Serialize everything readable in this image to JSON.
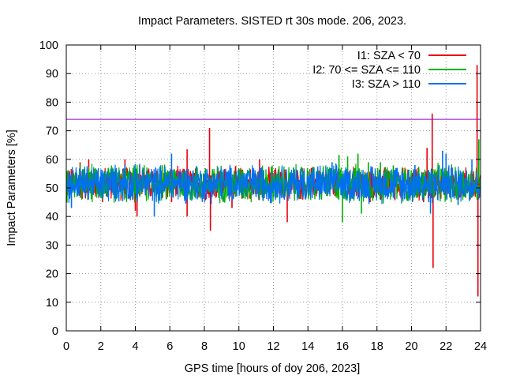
{
  "chart_data": {
    "type": "line",
    "title": "Impact Parameters. SISTED rt 30s mode. 206, 2023.",
    "xlabel": "GPS time [hours of doy 206, 2023]",
    "ylabel": "Impact Parameters [%]",
    "xlim": [
      0,
      24
    ],
    "ylim": [
      0,
      100
    ],
    "xticks": [
      0,
      2,
      4,
      6,
      8,
      10,
      12,
      14,
      16,
      18,
      20,
      22,
      24
    ],
    "yticks": [
      0,
      10,
      20,
      30,
      40,
      50,
      60,
      70,
      80,
      90,
      100
    ],
    "grid": true,
    "legend_position": "top-right",
    "reference_line": {
      "value": 74,
      "color": "#9400d3"
    },
    "series": [
      {
        "name": "I1: SZA < 70",
        "color": "#e8000b",
        "mean": 51.5,
        "band": [
          45,
          58
        ],
        "spikes": [
          [
            0.8,
            59
          ],
          [
            1.3,
            60
          ],
          [
            2.1,
            45
          ],
          [
            3.4,
            60
          ],
          [
            4.0,
            42
          ],
          [
            4.1,
            40
          ],
          [
            6.1,
            45
          ],
          [
            7.0,
            63.5
          ],
          [
            7.0,
            40
          ],
          [
            8.3,
            71
          ],
          [
            8.35,
            35
          ],
          [
            9.6,
            43
          ],
          [
            11.2,
            60
          ],
          [
            12.8,
            38
          ],
          [
            14.2,
            57
          ],
          [
            17.6,
            45
          ],
          [
            20.7,
            45
          ],
          [
            20.9,
            64
          ],
          [
            21.2,
            76
          ],
          [
            21.25,
            22
          ],
          [
            23.8,
            93
          ],
          [
            23.85,
            12
          ]
        ]
      },
      {
        "name": "I2: 70 <= SZA <= 110",
        "color": "#00b000",
        "mean": 51.5,
        "band": [
          44,
          59
        ],
        "spikes": [
          [
            15.8,
            61.5
          ],
          [
            16.0,
            38
          ],
          [
            16.3,
            61
          ],
          [
            16.9,
            62
          ],
          [
            17.1,
            41
          ],
          [
            17.5,
            59
          ],
          [
            18.2,
            59
          ],
          [
            23.9,
            67
          ],
          [
            21.6,
            58
          ]
        ]
      },
      {
        "name": "I3: SZA > 110",
        "color": "#0070f0",
        "mean": 51.5,
        "band": [
          44,
          59
        ],
        "spikes": [
          [
            0.3,
            43
          ],
          [
            3.4,
            58
          ],
          [
            5.1,
            40
          ],
          [
            6.1,
            62
          ],
          [
            15.4,
            59
          ],
          [
            19.5,
            46
          ],
          [
            20.2,
            58
          ],
          [
            21.0,
            45
          ],
          [
            21.1,
            41
          ],
          [
            21.8,
            63
          ],
          [
            22.0,
            62
          ],
          [
            22.3,
            57
          ],
          [
            22.7,
            44
          ],
          [
            23.5,
            60
          ]
        ]
      }
    ]
  }
}
